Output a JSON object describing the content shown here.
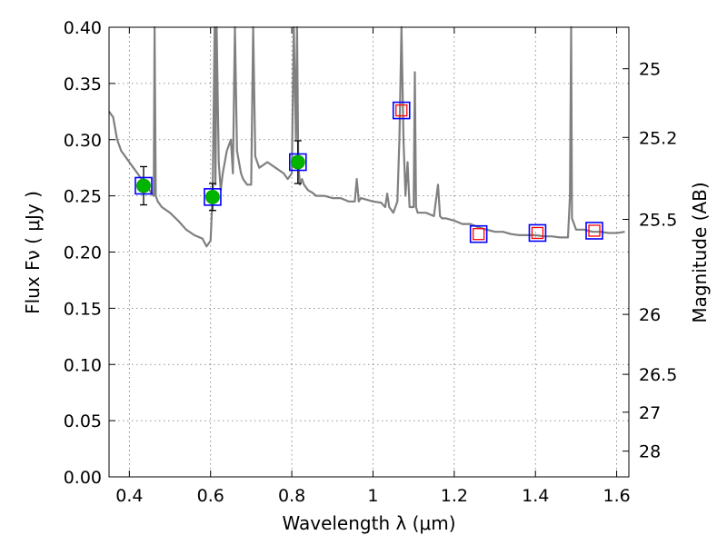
{
  "chart_data": {
    "type": "scatter",
    "xlabel": "Wavelength  λ (μm)",
    "ylabel": "Flux  Fν  ( μJy )",
    "ylabel_right": "Magnitude (AB)",
    "xlim": [
      0.35,
      1.63
    ],
    "ylim": [
      0.0,
      0.4
    ],
    "grid": true,
    "x_ticks": [
      {
        "value": 0.4,
        "label": "0.4"
      },
      {
        "value": 0.6,
        "label": "0.6"
      },
      {
        "value": 0.8,
        "label": "0.8"
      },
      {
        "value": 1.0,
        "label": "1"
      },
      {
        "value": 1.2,
        "label": "1.2"
      },
      {
        "value": 1.4,
        "label": "1.4"
      },
      {
        "value": 1.6,
        "label": "1.6"
      }
    ],
    "y_ticks": [
      {
        "value": 0.0,
        "label": "0.00"
      },
      {
        "value": 0.05,
        "label": "0.05"
      },
      {
        "value": 0.1,
        "label": "0.10"
      },
      {
        "value": 0.15,
        "label": "0.15"
      },
      {
        "value": 0.2,
        "label": "0.20"
      },
      {
        "value": 0.25,
        "label": "0.25"
      },
      {
        "value": 0.3,
        "label": "0.30"
      },
      {
        "value": 0.35,
        "label": "0.35"
      },
      {
        "value": 0.4,
        "label": "0.40"
      }
    ],
    "right_ticks": [
      {
        "mag": 25,
        "label": "25"
      },
      {
        "mag": 25.2,
        "label": "25.2"
      },
      {
        "mag": 25.5,
        "label": "25.5"
      },
      {
        "mag": 26,
        "label": "26"
      },
      {
        "mag": 26.5,
        "label": "26.5"
      },
      {
        "mag": 27,
        "label": "27"
      },
      {
        "mag": 28,
        "label": "28"
      }
    ],
    "series": [
      {
        "kind": "line",
        "color": "#808080",
        "x": [
          0.35,
          0.36,
          0.37,
          0.38,
          0.39,
          0.4,
          0.41,
          0.42,
          0.43,
          0.44,
          0.45,
          0.455,
          0.46,
          0.462,
          0.465,
          0.47,
          0.48,
          0.5,
          0.52,
          0.54,
          0.56,
          0.58,
          0.59,
          0.6,
          0.605,
          0.61,
          0.612,
          0.615,
          0.62,
          0.625,
          0.63,
          0.64,
          0.65,
          0.655,
          0.66,
          0.665,
          0.67,
          0.675,
          0.68,
          0.69,
          0.7,
          0.705,
          0.71,
          0.715,
          0.72,
          0.74,
          0.76,
          0.78,
          0.79,
          0.8,
          0.805,
          0.81,
          0.813,
          0.816,
          0.82,
          0.825,
          0.83,
          0.84,
          0.85,
          0.86,
          0.88,
          0.9,
          0.92,
          0.94,
          0.955,
          0.96,
          0.965,
          0.97,
          0.99,
          1.0,
          1.02,
          1.03,
          1.035,
          1.04,
          1.05,
          1.06,
          1.065,
          1.07,
          1.075,
          1.08,
          1.085,
          1.09,
          1.1,
          1.103,
          1.106,
          1.11,
          1.13,
          1.15,
          1.16,
          1.165,
          1.17,
          1.18,
          1.2,
          1.22,
          1.24,
          1.26,
          1.28,
          1.3,
          1.32,
          1.34,
          1.36,
          1.38,
          1.4,
          1.42,
          1.44,
          1.46,
          1.47,
          1.48,
          1.485,
          1.488,
          1.49,
          1.495,
          1.5,
          1.52,
          1.54,
          1.56,
          1.58,
          1.6,
          1.62
        ],
        "y": [
          0.325,
          0.32,
          0.3,
          0.29,
          0.285,
          0.28,
          0.275,
          0.27,
          0.265,
          0.26,
          0.255,
          0.252,
          0.25,
          0.4,
          0.25,
          0.245,
          0.24,
          0.235,
          0.228,
          0.22,
          0.215,
          0.212,
          0.205,
          0.21,
          0.25,
          0.4,
          0.26,
          0.4,
          0.28,
          0.255,
          0.27,
          0.29,
          0.3,
          0.27,
          0.4,
          0.29,
          0.28,
          0.27,
          0.265,
          0.26,
          0.26,
          0.4,
          0.285,
          0.28,
          0.275,
          0.28,
          0.275,
          0.27,
          0.265,
          0.27,
          0.4,
          0.3,
          0.4,
          0.28,
          0.26,
          0.265,
          0.26,
          0.255,
          0.253,
          0.25,
          0.25,
          0.248,
          0.248,
          0.245,
          0.245,
          0.265,
          0.245,
          0.248,
          0.246,
          0.245,
          0.244,
          0.24,
          0.252,
          0.24,
          0.235,
          0.245,
          0.3,
          0.4,
          0.3,
          0.25,
          0.28,
          0.24,
          0.24,
          0.36,
          0.24,
          0.235,
          0.235,
          0.232,
          0.26,
          0.232,
          0.23,
          0.23,
          0.228,
          0.225,
          0.225,
          0.222,
          0.22,
          0.218,
          0.218,
          0.216,
          0.215,
          0.215,
          0.215,
          0.214,
          0.214,
          0.213,
          0.213,
          0.213,
          0.25,
          0.4,
          0.23,
          0.225,
          0.22,
          0.22,
          0.218,
          0.218,
          0.217,
          0.217,
          0.218
        ]
      },
      {
        "kind": "points",
        "marker": "circle",
        "fill": "#00b400",
        "edge": "#0000ff",
        "boxed": true,
        "x": [
          0.435,
          0.605,
          0.815
        ],
        "y": [
          0.259,
          0.249,
          0.28
        ],
        "yerr": [
          0.017,
          0.012,
          0.019
        ]
      },
      {
        "kind": "points",
        "marker": "open-square",
        "edge": "#ff0000",
        "boxed": true,
        "x": [
          1.07,
          1.26,
          1.405,
          1.545
        ],
        "y": [
          0.326,
          0.216,
          0.217,
          0.219
        ]
      }
    ]
  }
}
